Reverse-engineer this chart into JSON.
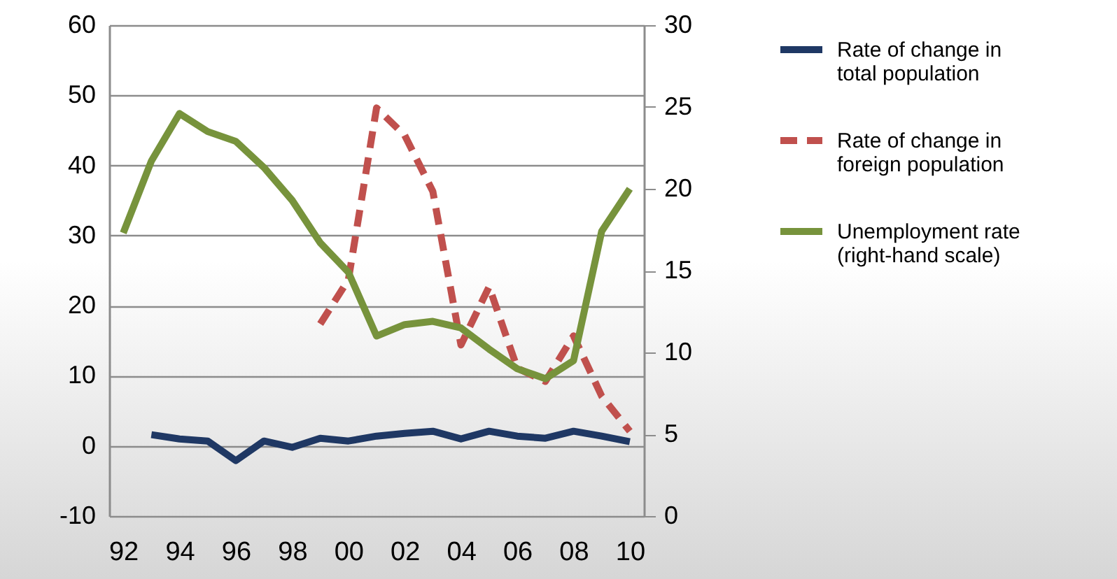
{
  "chart_data": {
    "type": "line",
    "x": [
      1992,
      1993,
      1994,
      1995,
      1996,
      1997,
      1998,
      1999,
      2000,
      2001,
      2002,
      2003,
      2004,
      2005,
      2006,
      2007,
      2008,
      2009,
      2010
    ],
    "series": [
      {
        "name": "Rate of change in total population",
        "color": "#1f3864",
        "line_style": "solid",
        "values": [
          null,
          1.6,
          1.0,
          0.7,
          -2.1,
          0.7,
          -0.2,
          1.1,
          0.7,
          1.4,
          1.8,
          2.1,
          1.0,
          2.1,
          1.4,
          1.1,
          2.1,
          1.4,
          0.6
        ]
      },
      {
        "name": "Rate of change in foreign population",
        "color": "#c0504d",
        "line_style": "dashed",
        "values": [
          null,
          null,
          null,
          null,
          null,
          null,
          null,
          17.4,
          23.7,
          48.2,
          44.3,
          36.3,
          14.4,
          22.7,
          11.1,
          9.2,
          15.7,
          7.1,
          2.1
        ]
      },
      {
        "name": "Unemployment rate (right-hand scale)",
        "color": "#77933c",
        "line_style": "solid",
        "axis": "y2",
        "values": [
          17.3,
          21.7,
          24.6,
          23.5,
          22.9,
          21.3,
          19.3,
          16.7,
          14.9,
          11.0,
          11.7,
          11.9,
          11.5,
          10.2,
          9.0,
          8.4,
          9.5,
          17.4,
          20.0
        ]
      }
    ],
    "xlim": [
      1991.5,
      2010.5
    ],
    "xticks": [
      {
        "value": 1992,
        "label": "92"
      },
      {
        "value": 1994,
        "label": "94"
      },
      {
        "value": 1996,
        "label": "96"
      },
      {
        "value": 1998,
        "label": "98"
      },
      {
        "value": 2000,
        "label": "00"
      },
      {
        "value": 2002,
        "label": "02"
      },
      {
        "value": 2004,
        "label": "04"
      },
      {
        "value": 2006,
        "label": "06"
      },
      {
        "value": 2008,
        "label": "08"
      },
      {
        "value": 2010,
        "label": "10"
      }
    ],
    "ylim": [
      -10,
      60
    ],
    "yticks": [
      -10,
      0,
      10,
      20,
      30,
      40,
      50,
      60
    ],
    "y2lim": [
      0,
      30
    ],
    "y2ticks": [
      0,
      5,
      10,
      15,
      20,
      25,
      30
    ],
    "grid": "y",
    "legend": "right"
  }
}
